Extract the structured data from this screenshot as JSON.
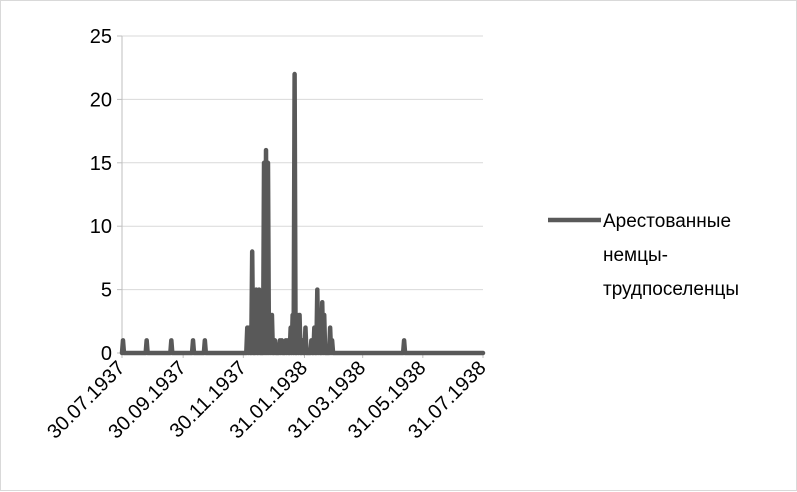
{
  "chart_data": {
    "type": "line",
    "title": "",
    "xlabel": "",
    "ylabel": "",
    "ylim": [
      0,
      25
    ],
    "yticks": [
      0,
      5,
      10,
      15,
      20,
      25
    ],
    "xlim": [
      "1937-07-30",
      "1938-07-31"
    ],
    "xticks": [
      "30.07.1937",
      "30.09.1937",
      "30.11.1937",
      "31.01.1938",
      "31.03.1938",
      "31.05.1938",
      "31.07.1938"
    ],
    "grid": "horizontal",
    "legend": "right",
    "series": [
      {
        "name": "Арестованные немцы-трудпоселенцы",
        "color": "#595959",
        "points": [
          [
            "1937-07-31",
            1
          ],
          [
            "1937-08-24",
            1
          ],
          [
            "1937-09-18",
            1
          ],
          [
            "1937-10-10",
            1
          ],
          [
            "1937-10-22",
            1
          ],
          [
            "1937-12-04",
            2
          ],
          [
            "1937-12-06",
            2
          ],
          [
            "1937-12-09",
            8
          ],
          [
            "1937-12-13",
            5
          ],
          [
            "1937-12-16",
            5
          ],
          [
            "1937-12-21",
            15
          ],
          [
            "1937-12-23",
            16
          ],
          [
            "1937-12-25",
            15
          ],
          [
            "1937-12-27",
            3
          ],
          [
            "1937-12-29",
            3
          ],
          [
            "1938-01-01",
            1
          ],
          [
            "1938-01-06",
            1
          ],
          [
            "1938-01-08",
            1
          ],
          [
            "1938-01-12",
            1
          ],
          [
            "1938-01-14",
            1
          ],
          [
            "1938-01-17",
            2
          ],
          [
            "1938-01-19",
            3
          ],
          [
            "1938-01-21",
            22
          ],
          [
            "1938-01-24",
            3
          ],
          [
            "1938-01-26",
            3
          ],
          [
            "1938-01-29",
            1
          ],
          [
            "1938-02-01",
            2
          ],
          [
            "1938-02-07",
            1
          ],
          [
            "1938-02-10",
            2
          ],
          [
            "1938-02-13",
            5
          ],
          [
            "1938-02-15",
            3
          ],
          [
            "1938-02-18",
            4
          ],
          [
            "1938-02-20",
            3
          ],
          [
            "1938-02-26",
            2
          ],
          [
            "1938-02-28",
            1
          ],
          [
            "1938-05-12",
            1
          ]
        ]
      }
    ]
  }
}
